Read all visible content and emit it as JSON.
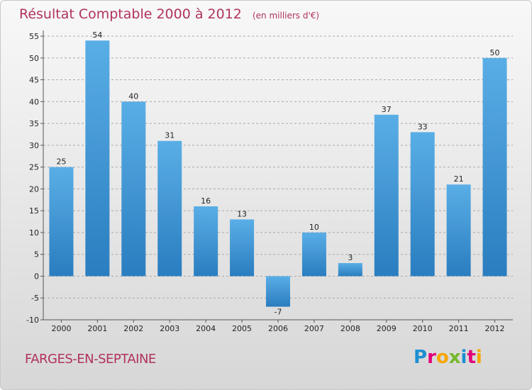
{
  "header": {
    "title": "Résultat Comptable 2000 à 2012",
    "subtitle": "(en milliers d'€)"
  },
  "footer": {
    "commune": "FARGES-EN-SEPTAINE",
    "logo_text": "Proxiti",
    "logo_letters": [
      {
        "ch": "P",
        "color": "#1d8fd1"
      },
      {
        "ch": "r",
        "color": "#e2007a"
      },
      {
        "ch": "o",
        "color": "#f7a600"
      },
      {
        "ch": "x",
        "color": "#76b82a"
      },
      {
        "ch": "i",
        "color": "#1d8fd1"
      },
      {
        "ch": "t",
        "color": "#e2007a"
      },
      {
        "ch": "i",
        "color": "#f7a600"
      }
    ]
  },
  "colors": {
    "title": "#b0335c",
    "bar_top": "#5aaee6",
    "bar_bottom": "#2a7dbf",
    "grid": "#a9a9a9",
    "axis_text": "#222222"
  },
  "chart_data": {
    "type": "bar",
    "title": "Résultat Comptable 2000 à 2012",
    "subtitle": "(en milliers d'€)",
    "xlabel": "",
    "ylabel": "",
    "categories": [
      "2000",
      "2001",
      "2002",
      "2003",
      "2004",
      "2005",
      "2006",
      "2007",
      "2008",
      "2009",
      "2010",
      "2011",
      "2012"
    ],
    "values": [
      25,
      54,
      40,
      31,
      16,
      13,
      -7,
      10,
      3,
      37,
      33,
      21,
      50
    ],
    "ylim": [
      -10,
      55
    ],
    "yticks": [
      -10,
      -5,
      0,
      5,
      10,
      15,
      20,
      25,
      30,
      35,
      40,
      45,
      50,
      55
    ],
    "grid": true,
    "legend": "none"
  }
}
